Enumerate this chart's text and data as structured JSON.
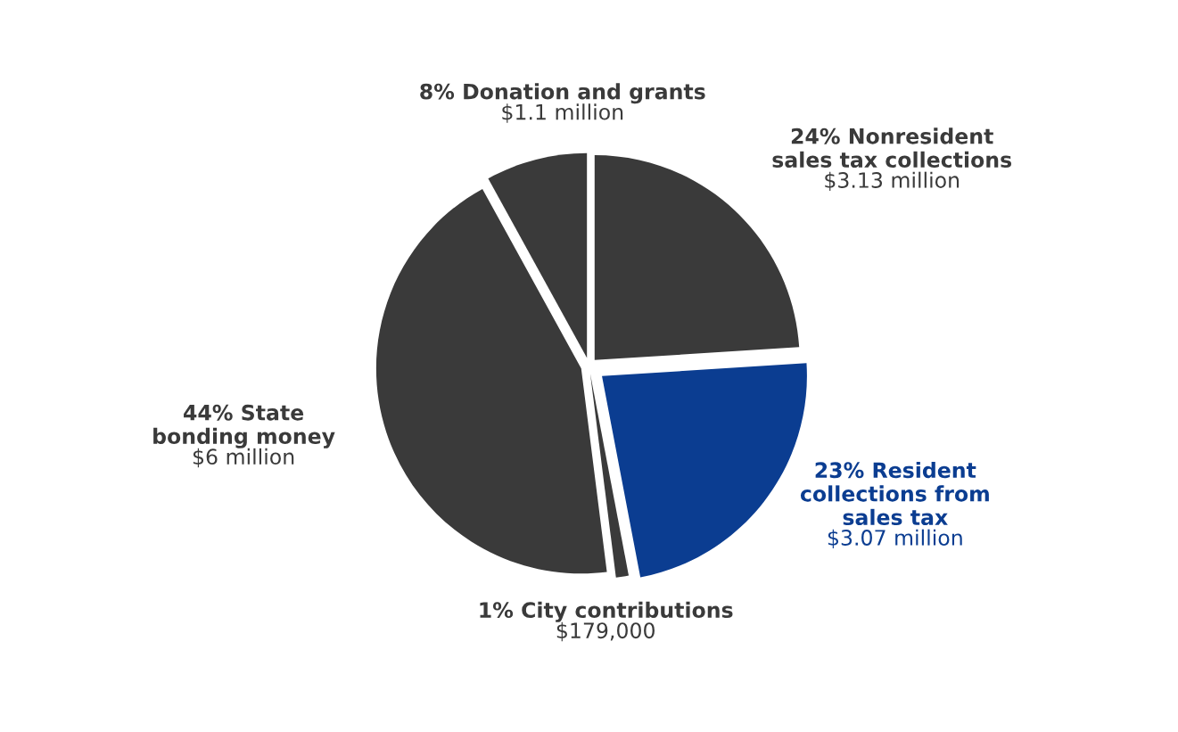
{
  "chart_data": {
    "type": "pie",
    "categories": [
      "24% Nonresident\nsales tax collections",
      "23% Resident\ncollections from\nsales tax",
      "1% City contributions",
      "44% State\nbonding money",
      "8% Donation and grants"
    ],
    "values": [
      24,
      23,
      1,
      44,
      8
    ],
    "annotations": [
      "$3.13 million",
      "$3.07 million",
      "$179,000",
      "$6 million",
      "$1.1 million"
    ],
    "colors": [
      "#3a3a3a",
      "#0b3d91",
      "#3a3a3a",
      "#3a3a3a",
      "#3a3a3a"
    ]
  }
}
